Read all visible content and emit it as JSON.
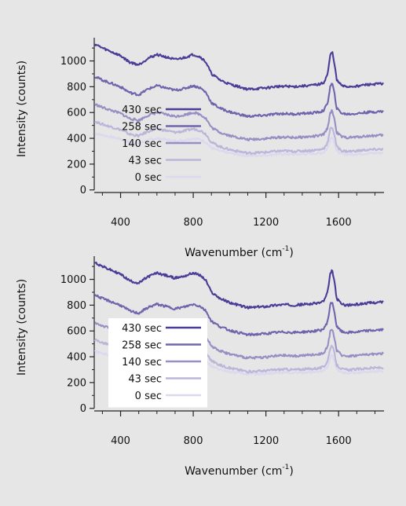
{
  "chart_data": [
    {
      "type": "line",
      "panel": "top",
      "xlabel": "Wavenumber (cm",
      "xlabel_sup": "-1",
      "xlabel_suffix": ")",
      "ylabel": "Intensity (counts)",
      "xlim": [
        255,
        1850
      ],
      "ylim": [
        -20,
        1180
      ],
      "xticks": [
        400,
        800,
        1200,
        1600
      ],
      "yticks": [
        0,
        200,
        400,
        600,
        800,
        1000
      ],
      "grid": false,
      "legend_placement": "middle-left",
      "legend_background": "none",
      "series": [
        {
          "name": "430 sec",
          "color": "#4a3d98",
          "offset": 780,
          "scale": 1.0
        },
        {
          "name": "258 sec",
          "color": "#7065ad",
          "offset": 570,
          "scale": 0.88
        },
        {
          "name": "140 sec",
          "color": "#978fc4",
          "offset": 390,
          "scale": 0.78
        },
        {
          "name": "43 sec",
          "color": "#bab5d9",
          "offset": 285,
          "scale": 0.7
        },
        {
          "name": "0 sec",
          "color": "#dcd9ee",
          "offset": 265,
          "scale": 0.5
        }
      ]
    },
    {
      "type": "line",
      "panel": "bottom",
      "xlabel": "Wavenumber (cm",
      "xlabel_sup": "-1",
      "xlabel_suffix": ")",
      "ylabel": "Intensity (counts)",
      "xlim": [
        255,
        1850
      ],
      "ylim": [
        -20,
        1180
      ],
      "xticks": [
        400,
        800,
        1200,
        1600
      ],
      "yticks": [
        0,
        200,
        400,
        600,
        800,
        1000
      ],
      "grid": false,
      "legend_placement": "middle-left",
      "legend_background": "white",
      "series": [
        {
          "name": "430 sec",
          "color": "#4a3d98",
          "offset": 780,
          "scale": 1.0
        },
        {
          "name": "258 sec",
          "color": "#7065ad",
          "offset": 570,
          "scale": 0.88
        },
        {
          "name": "140 sec",
          "color": "#978fc4",
          "offset": 390,
          "scale": 0.78
        },
        {
          "name": "43 sec",
          "color": "#bab5d9",
          "offset": 285,
          "scale": 0.7
        },
        {
          "name": "0 sec",
          "color": "#dcd9ee",
          "offset": 265,
          "scale": 0.5
        }
      ],
      "spectrum_shape": {
        "x": [
          260,
          300,
          350,
          400,
          450,
          500,
          550,
          600,
          650,
          700,
          750,
          800,
          840,
          870,
          900,
          950,
          1000,
          1050,
          1100,
          1150,
          1200,
          1250,
          1300,
          1350,
          1400,
          1450,
          1500,
          1520,
          1540,
          1555,
          1565,
          1575,
          1590,
          1620,
          1650,
          1700,
          1750,
          1800,
          1850
        ],
        "y": [
          350,
          320,
          290,
          260,
          210,
          190,
          240,
          270,
          250,
          230,
          245,
          270,
          250,
          210,
          120,
          70,
          40,
          20,
          0,
          5,
          10,
          20,
          25,
          20,
          25,
          30,
          40,
          55,
          120,
          270,
          290,
          220,
          70,
          25,
          20,
          25,
          35,
          40,
          45
        ]
      }
    }
  ]
}
